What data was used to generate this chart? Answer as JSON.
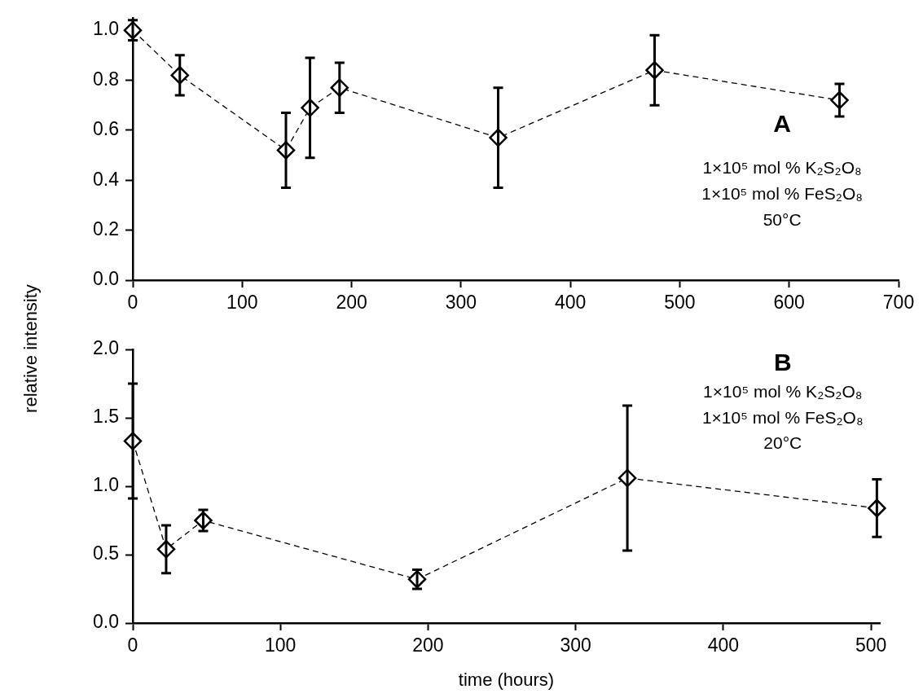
{
  "chart_data": [
    {
      "type": "line",
      "ylabel": "relative intensity",
      "x": [
        0,
        43,
        140,
        162,
        189,
        334,
        477,
        646
      ],
      "series": [
        {
          "color": "#000000",
          "values": [
            1.0,
            0.82,
            0.52,
            0.69,
            0.77,
            0.57,
            0.84,
            0.72
          ],
          "errors": [
            0.04,
            0.08,
            0.15,
            0.2,
            0.1,
            0.2,
            0.14,
            0.065
          ]
        }
      ],
      "xlim": [
        0,
        700
      ],
      "xticks": [
        0,
        100,
        200,
        300,
        400,
        500,
        600,
        700
      ],
      "ylim": [
        0,
        1.05
      ],
      "yticks": [
        {
          "value": 0,
          "label": "0.0"
        },
        {
          "value": 0.2,
          "label": "0.2"
        },
        {
          "value": 0.4,
          "label": "0.4"
        },
        {
          "value": 0.6,
          "label": "0.6"
        },
        {
          "value": 0.8,
          "label": "0.8"
        },
        {
          "value": 1,
          "label": "1.0"
        }
      ],
      "annotations": [
        "A",
        "1×10⁵ mol % K₂S₂O₈",
        "1×10⁵ mol % FeS₂O₈",
        "50°C"
      ],
      "grid": false,
      "legend": false,
      "marker": "diamond",
      "line_style": "dashed"
    },
    {
      "type": "line",
      "xlabel": "time (hours)",
      "x": [
        0,
        22.6,
        47.7,
        192.6,
        335,
        504
      ],
      "series": [
        {
          "color": "#000000",
          "values": [
            1.33,
            0.54,
            0.75,
            0.32,
            1.06,
            0.84
          ],
          "errors": [
            0.42,
            0.175,
            0.078,
            0.07,
            0.53,
            0.21
          ]
        }
      ],
      "xlim": [
        0,
        506
      ],
      "xticks": [
        0,
        100,
        200,
        300,
        400,
        500
      ],
      "ylim": [
        0,
        2
      ],
      "yticks": [
        {
          "value": 0,
          "label": "0.0"
        },
        {
          "value": 0.5,
          "label": "0.5"
        },
        {
          "value": 1,
          "label": "1.0"
        },
        {
          "value": 1.5,
          "label": "1.5"
        },
        {
          "value": 2,
          "label": "2.0"
        }
      ],
      "annotations": [
        "B",
        "1×10⁵ mol % K₂S₂O₈",
        "1×10⁵ mol % FeS₂O₈",
        "20°C"
      ],
      "grid": false,
      "legend": false,
      "marker": "diamond",
      "line_style": "dashed"
    }
  ]
}
